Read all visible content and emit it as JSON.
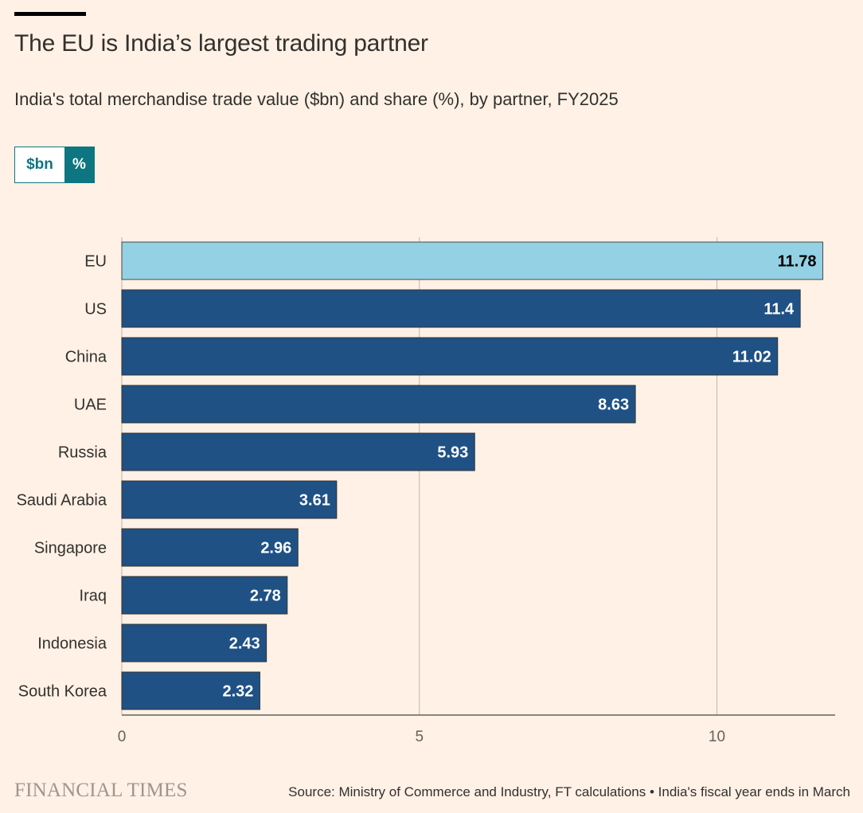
{
  "title": "The EU is India’s largest trading partner",
  "subtitle": "India's total merchandise trade value ($bn) and share (%), by partner, FY2025",
  "toggle": {
    "bn_label": "$bn",
    "pct_label": "%",
    "selected": "%"
  },
  "colors": {
    "background": "#FFF1E5",
    "highlight_bar": "#94D1E4",
    "bar": "#1F5185",
    "grid": "#C9BFB6",
    "axis": "#66605C",
    "toggle_accent": "#0D7680"
  },
  "chart_data": {
    "type": "bar",
    "orientation": "horizontal",
    "categories": [
      "EU",
      "US",
      "China",
      "UAE",
      "Russia",
      "Saudi Arabia",
      "Singapore",
      "Iraq",
      "Indonesia",
      "South Korea"
    ],
    "values": [
      11.78,
      11.4,
      11.02,
      8.63,
      5.93,
      3.61,
      2.96,
      2.78,
      2.43,
      2.32
    ],
    "value_labels": [
      "11.78",
      "11.4",
      "11.02",
      "8.63",
      "5.93",
      "3.61",
      "2.96",
      "2.78",
      "2.43",
      "2.32"
    ],
    "highlight": "EU",
    "xlim": [
      0,
      12.0
    ],
    "xticks": [
      0,
      5,
      10
    ],
    "xtick_labels": [
      "0",
      "5",
      "10"
    ],
    "grid": true,
    "unit": "%"
  },
  "footer": {
    "logo": "FINANCIAL TIMES",
    "source": "Source: Ministry of Commerce and Industry, FT calculations • India's fiscal year ends in March"
  }
}
